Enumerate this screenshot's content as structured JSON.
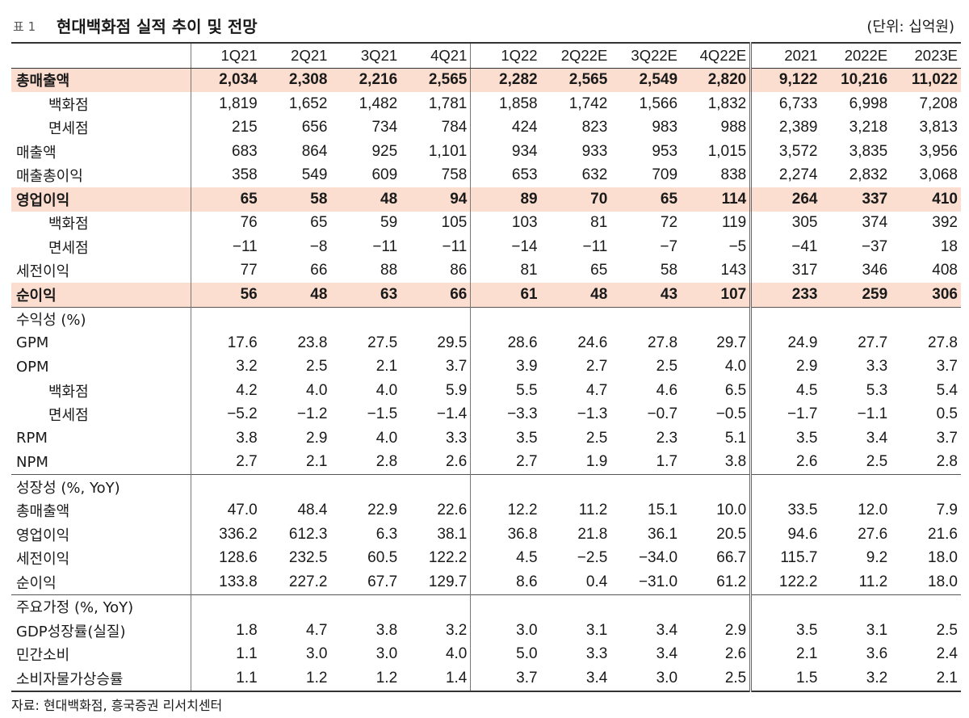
{
  "table_no": "표 1",
  "title": "현대백화점 실적 추이 및 전망",
  "unit": "(단위: 십억원)",
  "columns": [
    "1Q21",
    "2Q21",
    "3Q21",
    "4Q21",
    "1Q22",
    "2Q22E",
    "3Q22E",
    "4Q22E",
    "2021",
    "2022E",
    "2023E"
  ],
  "rows": [
    {
      "label": "총매출액",
      "style": "hl",
      "values": [
        "2,034",
        "2,308",
        "2,216",
        "2,565",
        "2,282",
        "2,565",
        "2,549",
        "2,820",
        "9,122",
        "10,216",
        "11,022"
      ]
    },
    {
      "label": "백화점",
      "style": "indent",
      "values": [
        "1,819",
        "1,652",
        "1,482",
        "1,781",
        "1,858",
        "1,742",
        "1,566",
        "1,832",
        "6,733",
        "6,998",
        "7,208"
      ]
    },
    {
      "label": "면세점",
      "style": "indent",
      "values": [
        "215",
        "656",
        "734",
        "784",
        "424",
        "823",
        "983",
        "988",
        "2,389",
        "3,218",
        "3,813"
      ]
    },
    {
      "label": "매출액",
      "style": "",
      "values": [
        "683",
        "864",
        "925",
        "1,101",
        "934",
        "933",
        "953",
        "1,015",
        "3,572",
        "3,835",
        "3,956"
      ]
    },
    {
      "label": "매출총이익",
      "style": "",
      "values": [
        "358",
        "549",
        "609",
        "758",
        "653",
        "632",
        "709",
        "838",
        "2,274",
        "2,832",
        "3,068"
      ]
    },
    {
      "label": "영업이익",
      "style": "hl",
      "values": [
        "65",
        "58",
        "48",
        "94",
        "89",
        "70",
        "65",
        "114",
        "264",
        "337",
        "410"
      ]
    },
    {
      "label": "백화점",
      "style": "indent",
      "values": [
        "76",
        "65",
        "59",
        "105",
        "103",
        "81",
        "72",
        "119",
        "305",
        "374",
        "392"
      ]
    },
    {
      "label": "면세점",
      "style": "indent",
      "values": [
        "−11",
        "−8",
        "−11",
        "−11",
        "−14",
        "−11",
        "−7",
        "−5",
        "−41",
        "−37",
        "18"
      ]
    },
    {
      "label": "세전이익",
      "style": "",
      "values": [
        "77",
        "66",
        "88",
        "86",
        "81",
        "65",
        "58",
        "143",
        "317",
        "346",
        "408"
      ]
    },
    {
      "label": "순이익",
      "style": "hl",
      "values": [
        "56",
        "48",
        "63",
        "66",
        "61",
        "48",
        "43",
        "107",
        "233",
        "259",
        "306"
      ]
    },
    {
      "label": "수익성 (%)",
      "style": "section",
      "values": [
        "",
        "",
        "",
        "",
        "",
        "",
        "",
        "",
        "",
        "",
        ""
      ]
    },
    {
      "label": "GPM",
      "style": "",
      "values": [
        "17.6",
        "23.8",
        "27.5",
        "29.5",
        "28.6",
        "24.6",
        "27.8",
        "29.7",
        "24.9",
        "27.7",
        "27.8"
      ]
    },
    {
      "label": "OPM",
      "style": "",
      "values": [
        "3.2",
        "2.5",
        "2.1",
        "3.7",
        "3.9",
        "2.7",
        "2.5",
        "4.0",
        "2.9",
        "3.3",
        "3.7"
      ]
    },
    {
      "label": "백화점",
      "style": "indent",
      "values": [
        "4.2",
        "4.0",
        "4.0",
        "5.9",
        "5.5",
        "4.7",
        "4.6",
        "6.5",
        "4.5",
        "5.3",
        "5.4"
      ]
    },
    {
      "label": "면세점",
      "style": "indent",
      "values": [
        "−5.2",
        "−1.2",
        "−1.5",
        "−1.4",
        "−3.3",
        "−1.3",
        "−0.7",
        "−0.5",
        "−1.7",
        "−1.1",
        "0.5"
      ]
    },
    {
      "label": "RPM",
      "style": "",
      "values": [
        "3.8",
        "2.9",
        "4.0",
        "3.3",
        "3.5",
        "2.5",
        "2.3",
        "5.1",
        "3.5",
        "3.4",
        "3.7"
      ]
    },
    {
      "label": "NPM",
      "style": "",
      "values": [
        "2.7",
        "2.1",
        "2.8",
        "2.6",
        "2.7",
        "1.9",
        "1.7",
        "3.8",
        "2.6",
        "2.5",
        "2.8"
      ]
    },
    {
      "label": "성장성 (%, YoY)",
      "style": "section",
      "values": [
        "",
        "",
        "",
        "",
        "",
        "",
        "",
        "",
        "",
        "",
        ""
      ]
    },
    {
      "label": "총매출액",
      "style": "",
      "values": [
        "47.0",
        "48.4",
        "22.9",
        "22.6",
        "12.2",
        "11.2",
        "15.1",
        "10.0",
        "33.5",
        "12.0",
        "7.9"
      ]
    },
    {
      "label": "영업이익",
      "style": "",
      "values": [
        "336.2",
        "612.3",
        "6.3",
        "38.1",
        "36.8",
        "21.8",
        "36.1",
        "20.5",
        "94.6",
        "27.6",
        "21.6"
      ]
    },
    {
      "label": "세전이익",
      "style": "",
      "values": [
        "128.6",
        "232.5",
        "60.5",
        "122.2",
        "4.5",
        "−2.5",
        "−34.0",
        "66.7",
        "115.7",
        "9.2",
        "18.0"
      ]
    },
    {
      "label": "순이익",
      "style": "",
      "values": [
        "133.8",
        "227.2",
        "67.7",
        "129.7",
        "8.6",
        "0.4",
        "−31.0",
        "61.2",
        "122.2",
        "11.2",
        "18.0"
      ]
    },
    {
      "label": "주요가정 (%, YoY)",
      "style": "section",
      "values": [
        "",
        "",
        "",
        "",
        "",
        "",
        "",
        "",
        "",
        "",
        ""
      ]
    },
    {
      "label": "GDP성장률(실질)",
      "style": "",
      "values": [
        "1.8",
        "4.7",
        "3.8",
        "3.2",
        "3.0",
        "3.1",
        "3.4",
        "2.9",
        "3.5",
        "3.1",
        "2.5"
      ]
    },
    {
      "label": "민간소비",
      "style": "",
      "values": [
        "1.1",
        "3.0",
        "3.0",
        "4.0",
        "5.0",
        "3.3",
        "3.4",
        "2.6",
        "2.1",
        "3.6",
        "2.4"
      ]
    },
    {
      "label": "소비자물가상승률",
      "style": "last",
      "values": [
        "1.1",
        "1.2",
        "1.2",
        "1.4",
        "3.7",
        "3.4",
        "3.0",
        "2.5",
        "1.5",
        "3.2",
        "2.1"
      ]
    }
  ],
  "source": "자료: 현대백화점, 흥국증권 리서치센터"
}
